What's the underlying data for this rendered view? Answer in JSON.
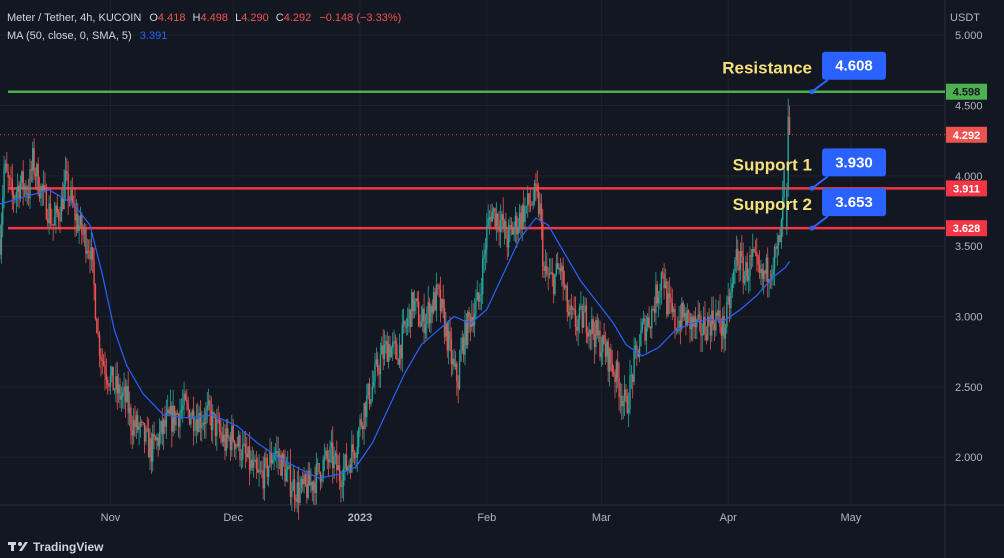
{
  "header": {
    "pair": "Meter / Tether, 4h, KUCOIN",
    "ohlc": [
      {
        "k": "O",
        "v": "4.418"
      },
      {
        "k": "H",
        "v": "4.498"
      },
      {
        "k": "L",
        "v": "4.290"
      },
      {
        "k": "C",
        "v": "4.292"
      }
    ],
    "change": "−0.148 (−3.33%)",
    "ma_label": "MA (50, close, 0, SMA, 5)",
    "ma_value": "3.391"
  },
  "currency": "USDT",
  "branding": "TradingView",
  "colors": {
    "background": "#131722",
    "up": "#26a69a",
    "down": "#ef5350",
    "ma": "#2962ff",
    "resistance": "#4caf50",
    "support": "#f23645",
    "callout": "#2962ff",
    "annotation_text": "#f5e07a"
  },
  "chart_data": {
    "type": "candlestick",
    "title": "Meter / Tether, 4h, KUCOIN",
    "ylabel": "USDT",
    "ylim": [
      1.66,
      5.25
    ],
    "grid": true,
    "x_ticks": [
      {
        "label": "Nov",
        "day": 27
      },
      {
        "label": "Dec",
        "day": 57
      },
      {
        "label": "2023",
        "day": 88
      },
      {
        "label": "Feb",
        "day": 119
      },
      {
        "label": "Mar",
        "day": 147
      },
      {
        "label": "Apr",
        "day": 178
      },
      {
        "label": "May",
        "day": 208
      }
    ],
    "y_ticks": [
      "5.000",
      "4.500",
      "4.000",
      "3.500",
      "3.000",
      "2.500",
      "2.000"
    ],
    "y_tick_values": [
      5.0,
      4.5,
      4.0,
      3.5,
      3.0,
      2.5,
      2.0
    ],
    "x_range_days": [
      0,
      231
    ],
    "path_points": [
      [
        0,
        3.55
      ],
      [
        1,
        4.05
      ],
      [
        3,
        3.85
      ],
      [
        5,
        3.95
      ],
      [
        7,
        3.9
      ],
      [
        8,
        4.1
      ],
      [
        10,
        3.9
      ],
      [
        12,
        3.75
      ],
      [
        13,
        3.65
      ],
      [
        15,
        3.8
      ],
      [
        16,
        3.95
      ],
      [
        18,
        3.75
      ],
      [
        20,
        3.6
      ],
      [
        22,
        3.5
      ],
      [
        23,
        3.2
      ],
      [
        24,
        2.85
      ],
      [
        25,
        2.7
      ],
      [
        27,
        2.55
      ],
      [
        29,
        2.45
      ],
      [
        31,
        2.4
      ],
      [
        32,
        2.25
      ],
      [
        34,
        2.2
      ],
      [
        36,
        2.1
      ],
      [
        37,
        2.05
      ],
      [
        39,
        2.15
      ],
      [
        41,
        2.25
      ],
      [
        43,
        2.3
      ],
      [
        45,
        2.35
      ],
      [
        47,
        2.3
      ],
      [
        49,
        2.28
      ],
      [
        51,
        2.3
      ],
      [
        53,
        2.2
      ],
      [
        55,
        2.1
      ],
      [
        57,
        2.15
      ],
      [
        59,
        2.05
      ],
      [
        61,
        1.95
      ],
      [
        63,
        1.85
      ],
      [
        65,
        1.9
      ],
      [
        67,
        2.05
      ],
      [
        69,
        1.95
      ],
      [
        71,
        1.82
      ],
      [
        73,
        1.75
      ],
      [
        75,
        1.78
      ],
      [
        77,
        1.85
      ],
      [
        79,
        1.95
      ],
      [
        81,
        2.0
      ],
      [
        83,
        1.88
      ],
      [
        85,
        1.95
      ],
      [
        87,
        2.1
      ],
      [
        89,
        2.35
      ],
      [
        91,
        2.5
      ],
      [
        93,
        2.7
      ],
      [
        95,
        2.8
      ],
      [
        97,
        2.72
      ],
      [
        99,
        2.9
      ],
      [
        101,
        3.1
      ],
      [
        103,
        2.95
      ],
      [
        105,
        3.05
      ],
      [
        107,
        3.15
      ],
      [
        109,
        2.9
      ],
      [
        111,
        2.6
      ],
      [
        112,
        2.55
      ],
      [
        113,
        2.8
      ],
      [
        115,
        3.0
      ],
      [
        117,
        3.1
      ],
      [
        119,
        3.6
      ],
      [
        120,
        3.75
      ],
      [
        122,
        3.7
      ],
      [
        124,
        3.55
      ],
      [
        126,
        3.65
      ],
      [
        128,
        3.75
      ],
      [
        130,
        3.82
      ],
      [
        131,
        3.85
      ],
      [
        132,
        3.75
      ],
      [
        133,
        3.3
      ],
      [
        135,
        3.25
      ],
      [
        137,
        3.35
      ],
      [
        139,
        3.0
      ],
      [
        141,
        2.95
      ],
      [
        143,
        3.0
      ],
      [
        145,
        2.9
      ],
      [
        147,
        2.8
      ],
      [
        149,
        2.7
      ],
      [
        151,
        2.55
      ],
      [
        152,
        2.45
      ],
      [
        153,
        2.35
      ],
      [
        154,
        2.5
      ],
      [
        155,
        2.65
      ],
      [
        157,
        2.9
      ],
      [
        159,
        3.0
      ],
      [
        161,
        3.2
      ],
      [
        162,
        3.35
      ],
      [
        163,
        3.1
      ],
      [
        165,
        2.95
      ],
      [
        167,
        3.0
      ],
      [
        169,
        2.95
      ],
      [
        171,
        2.9
      ],
      [
        173,
        2.95
      ],
      [
        175,
        3.0
      ],
      [
        177,
        2.9
      ],
      [
        179,
        3.2
      ],
      [
        180,
        3.45
      ],
      [
        182,
        3.3
      ],
      [
        184,
        3.4
      ],
      [
        186,
        3.25
      ],
      [
        188,
        3.35
      ],
      [
        190,
        3.45
      ],
      [
        191,
        3.6
      ],
      [
        192,
        4.2
      ],
      [
        193,
        4.3
      ]
    ],
    "ma_points": [
      [
        0,
        3.8
      ],
      [
        6,
        3.85
      ],
      [
        12,
        3.9
      ],
      [
        18,
        3.8
      ],
      [
        22,
        3.65
      ],
      [
        25,
        3.3
      ],
      [
        28,
        2.9
      ],
      [
        31,
        2.65
      ],
      [
        35,
        2.45
      ],
      [
        40,
        2.3
      ],
      [
        46,
        2.28
      ],
      [
        52,
        2.3
      ],
      [
        58,
        2.22
      ],
      [
        63,
        2.1
      ],
      [
        68,
        2.0
      ],
      [
        73,
        1.92
      ],
      [
        78,
        1.85
      ],
      [
        83,
        1.88
      ],
      [
        87,
        1.93
      ],
      [
        91,
        2.1
      ],
      [
        95,
        2.35
      ],
      [
        99,
        2.6
      ],
      [
        103,
        2.8
      ],
      [
        107,
        2.9
      ],
      [
        111,
        3.0
      ],
      [
        115,
        2.95
      ],
      [
        119,
        3.05
      ],
      [
        123,
        3.3
      ],
      [
        127,
        3.55
      ],
      [
        131,
        3.7
      ],
      [
        134,
        3.65
      ],
      [
        138,
        3.45
      ],
      [
        142,
        3.25
      ],
      [
        146,
        3.1
      ],
      [
        150,
        2.95
      ],
      [
        153,
        2.8
      ],
      [
        157,
        2.72
      ],
      [
        161,
        2.78
      ],
      [
        165,
        2.9
      ],
      [
        169,
        2.95
      ],
      [
        173,
        2.98
      ],
      [
        177,
        2.97
      ],
      [
        181,
        3.05
      ],
      [
        185,
        3.15
      ],
      [
        189,
        3.28
      ],
      [
        192,
        3.35
      ],
      [
        193,
        3.391
      ]
    ],
    "levels": [
      {
        "name": "Resistance",
        "price": 4.598,
        "axis_label": "4.598",
        "callout": "4.608",
        "kind": "resistance"
      },
      {
        "name": "Support 1",
        "price": 3.911,
        "axis_label": "3.911",
        "callout": "3.930",
        "kind": "support"
      },
      {
        "name": "Support 2",
        "price": 3.628,
        "axis_label": "3.628",
        "callout": "3.653",
        "kind": "support"
      }
    ],
    "last_price": {
      "value": 4.292,
      "label": "4.292"
    }
  }
}
